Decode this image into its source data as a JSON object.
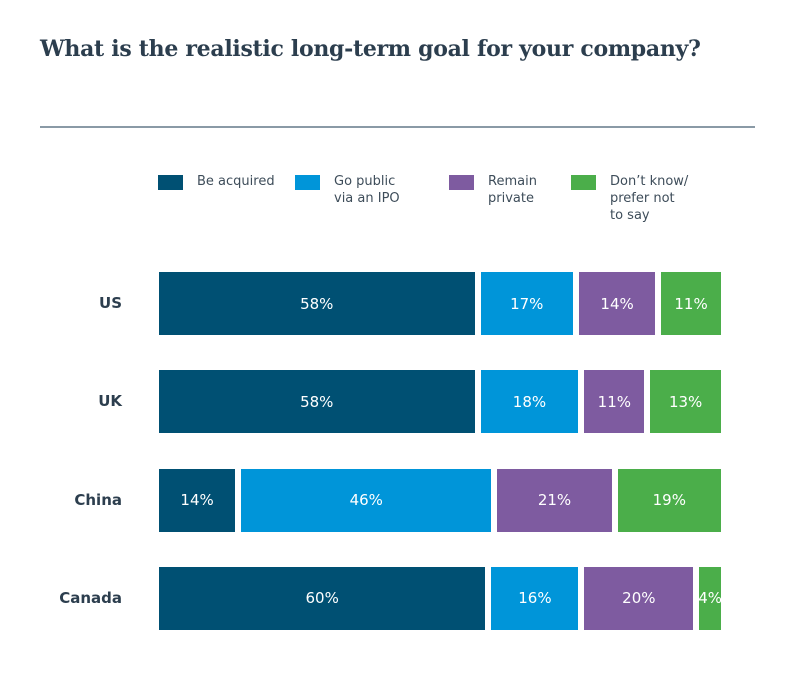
{
  "chart_data": {
    "type": "bar",
    "orientation": "horizontal-stacked",
    "title": "What is the realistic long-term goal for your company?",
    "categories": [
      "US",
      "UK",
      "China",
      "Canada"
    ],
    "series": [
      {
        "name": "Be acquired",
        "color": "#005073",
        "values": [
          58,
          58,
          14,
          60
        ],
        "labels": [
          "58%",
          "58%",
          "14%",
          "60%"
        ]
      },
      {
        "name": "Go public\nvia an IPO",
        "color": "#0095d9",
        "values": [
          17,
          18,
          46,
          16
        ],
        "labels": [
          "17%",
          "18%",
          "46%",
          "16%"
        ]
      },
      {
        "name": "Remain\nprivate",
        "color": "#7e5ba0",
        "values": [
          14,
          11,
          21,
          20
        ],
        "labels": [
          "14%",
          "11%",
          "21%",
          "20%"
        ]
      },
      {
        "name": "Don’t know/\nprefer not\nto say",
        "color": "#4bae4a",
        "values": [
          11,
          13,
          19,
          4
        ],
        "labels": [
          "11%",
          "13%",
          "19%",
          "4%"
        ]
      }
    ],
    "legend": "top",
    "grid": false
  }
}
